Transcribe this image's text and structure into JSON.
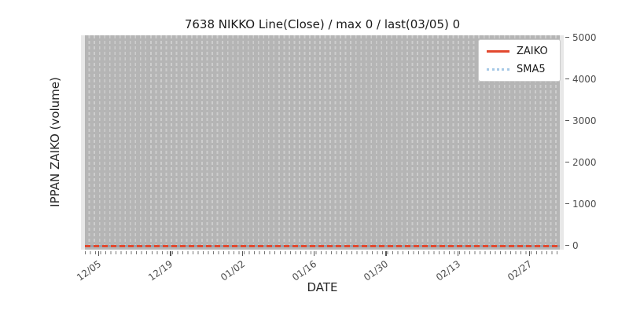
{
  "chart_data": {
    "type": "line",
    "title": "7638 NIKKO Line(Close) / max 0 / last(03/05) 0",
    "xlabel": "DATE",
    "ylabel": "IPPAN ZAIKO (volume)",
    "x_tick_labels": [
      "12/05",
      "12/19",
      "01/02",
      "01/16",
      "01/30",
      "02/13",
      "02/27"
    ],
    "y_tick_labels": [
      "0",
      "1000",
      "2000",
      "3000",
      "4000",
      "5000"
    ],
    "ylim": [
      0,
      5000
    ],
    "x_range": [
      "12/02",
      "03/05"
    ],
    "series": [
      {
        "name": "ZAIKO",
        "style": "solid",
        "color": "#e2492f",
        "value_constant": 0
      },
      {
        "name": "SMA5",
        "style": "dotted",
        "color": "#a6c9e6",
        "value_constant": 0
      }
    ],
    "legend_position": "upper right",
    "grid": {
      "vertical_daily": true,
      "dashed": true,
      "horizontal": false
    },
    "stats": {
      "max": 0,
      "last_date": "03/05",
      "last_value": 0
    },
    "colors": {
      "zaiko": "#e2492f",
      "sma5": "#a6c9e6",
      "sma5_overlay": "#9aa1ac",
      "plot_bg": "#e8e8e8",
      "span_bg": "#b5b5b5",
      "grid_dash": "#cdcdcd",
      "tick_mark": "#555555",
      "minor_tick": "#777777",
      "tick_text": "#4d4d4d",
      "label_text": "#262626"
    }
  }
}
